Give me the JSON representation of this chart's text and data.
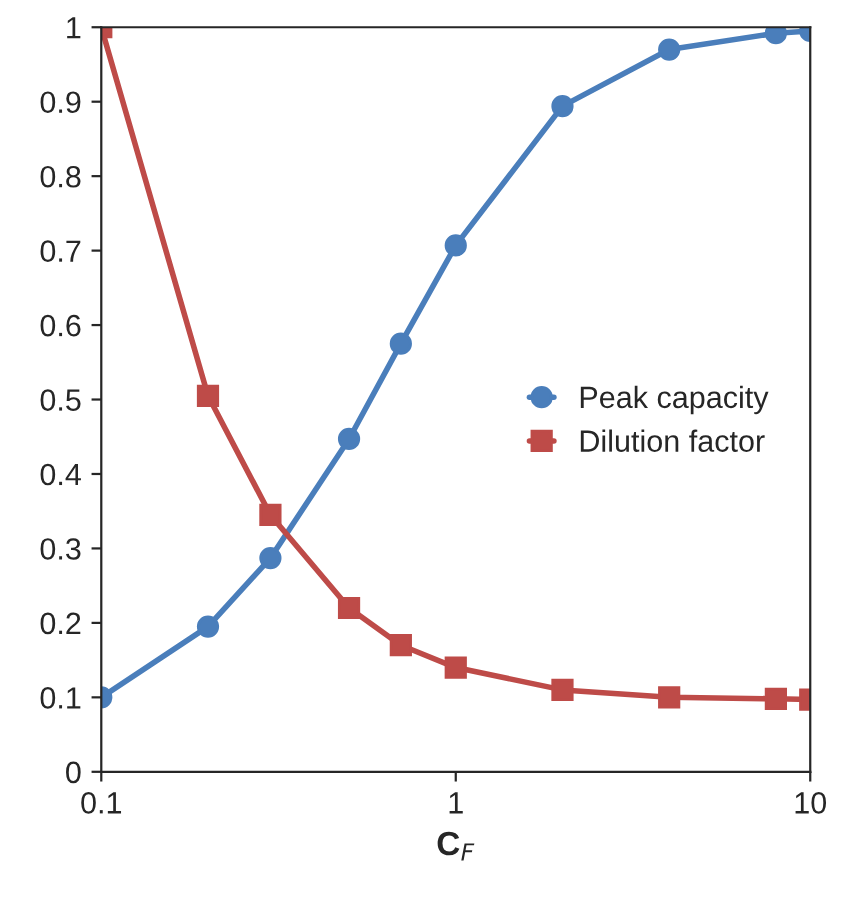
{
  "chart_data": {
    "type": "line",
    "xlabel": "C$_{F}$",
    "log": "x",
    "x": [
      0.1,
      0.2,
      0.3,
      0.5,
      0.7,
      1,
      2,
      4,
      8,
      10
    ],
    "series": [
      {
        "name": "Peak capacity",
        "color": "#4a7ebb",
        "marker": "circle",
        "values": [
          0.1,
          0.195,
          0.287,
          0.447,
          0.575,
          0.707,
          0.894,
          0.97,
          0.992,
          0.995
        ]
      },
      {
        "name": "Dilution factor",
        "color": "#be4b48",
        "marker": "square",
        "values": [
          1,
          0.505,
          0.345,
          0.22,
          0.17,
          0.14,
          0.11,
          0.1,
          0.098,
          0.097
        ]
      }
    ],
    "xlim": [
      0.1,
      10
    ],
    "xticks": [
      0.1,
      1,
      10
    ],
    "ylim": [
      0,
      1
    ],
    "yticks": [
      0,
      0.1,
      0.2,
      0.3,
      0.4,
      0.5,
      0.6,
      0.7,
      0.8,
      0.9,
      1
    ],
    "legend": "right",
    "grid": false,
    "line_style": "solid"
  }
}
